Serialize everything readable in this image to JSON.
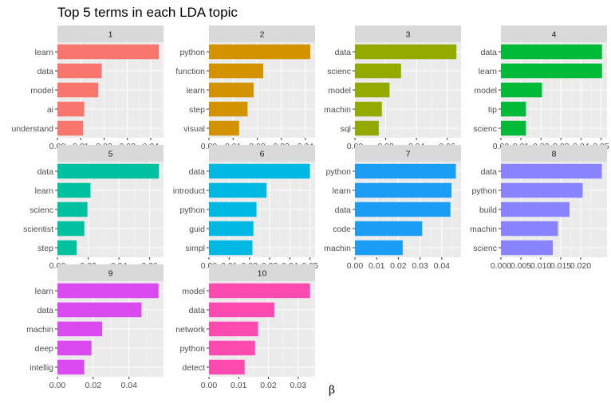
{
  "chart_data": {
    "type": "bar",
    "orientation": "horizontal",
    "title": "Top 5 terms in each LDA topic",
    "xlabel": "β",
    "ylabel": "",
    "grid": true,
    "legend": "none",
    "facets": [
      {
        "label": "1",
        "color": "#F8766D",
        "terms": [
          "learn",
          "data",
          "model",
          "ai",
          "understand"
        ],
        "values": [
          0.0435,
          0.019,
          0.0175,
          0.0115,
          0.011
        ],
        "xlim": [
          0,
          0.0455
        ],
        "ticks": [
          0,
          0.01,
          0.02,
          0.03,
          0.04
        ],
        "tick_labels": [
          "0.00",
          "0.01",
          "0.02",
          "0.03",
          "0.04"
        ]
      },
      {
        "label": "2",
        "color": "#D39200",
        "terms": [
          "python",
          "function",
          "learn",
          "step",
          "visual"
        ],
        "values": [
          0.042,
          0.0225,
          0.0185,
          0.016,
          0.0125
        ],
        "xlim": [
          0,
          0.044
        ],
        "ticks": [
          0,
          0.01,
          0.02,
          0.03,
          0.04
        ],
        "tick_labels": [
          "0.00",
          "0.01",
          "0.02",
          "0.03",
          "0.04"
        ]
      },
      {
        "label": "3",
        "color": "#93AA00",
        "terms": [
          "data",
          "scienc",
          "model",
          "machin",
          "sql"
        ],
        "values": [
          0.066,
          0.03,
          0.0225,
          0.0175,
          0.0155
        ],
        "xlim": [
          0,
          0.069
        ],
        "ticks": [
          0,
          0.02,
          0.04,
          0.06
        ],
        "tick_labels": [
          "0.00",
          "0.02",
          "0.04",
          "0.06"
        ]
      },
      {
        "label": "4",
        "color": "#00BA38",
        "terms": [
          "data",
          "learn",
          "model",
          "tip",
          "scienc"
        ],
        "values": [
          0.0505,
          0.0505,
          0.0205,
          0.0125,
          0.0125
        ],
        "xlim": [
          0,
          0.053
        ],
        "ticks": [
          0,
          0.01,
          0.02,
          0.03,
          0.04,
          0.05
        ],
        "tick_labels": [
          "0.00",
          "0.01",
          "0.02",
          "0.03",
          "0.04",
          "0.05"
        ]
      },
      {
        "label": "5",
        "color": "#00C19F",
        "terms": [
          "data",
          "learn",
          "scienc",
          "scientist",
          "step"
        ],
        "values": [
          0.066,
          0.0215,
          0.0195,
          0.0175,
          0.0125
        ],
        "xlim": [
          0,
          0.069
        ],
        "ticks": [
          0,
          0.02,
          0.04,
          0.06
        ],
        "tick_labels": [
          "0.00",
          "0.02",
          "0.04",
          "0.06"
        ]
      },
      {
        "label": "6",
        "color": "#00B9E3",
        "terms": [
          "data",
          "introduct",
          "python",
          "guid",
          "simpl"
        ],
        "values": [
          0.05,
          0.0285,
          0.0235,
          0.022,
          0.0215
        ],
        "xlim": [
          0,
          0.0525
        ],
        "ticks": [
          0,
          0.01,
          0.02,
          0.03,
          0.04,
          0.05
        ],
        "tick_labels": [
          "0.00",
          "0.01",
          "0.02",
          "0.03",
          "0.04",
          "0.05"
        ]
      },
      {
        "label": "7",
        "color": "#1A9EF5",
        "terms": [
          "python",
          "learn",
          "data",
          "code",
          "machin"
        ],
        "values": [
          0.0465,
          0.0445,
          0.044,
          0.031,
          0.022
        ],
        "xlim": [
          0,
          0.0489
        ],
        "ticks": [
          0,
          0.01,
          0.02,
          0.03,
          0.04
        ],
        "tick_labels": [
          "0.00",
          "0.01",
          "0.02",
          "0.03",
          "0.04"
        ]
      },
      {
        "label": "8",
        "color": "#8A83FF",
        "terms": [
          "data",
          "python",
          "build",
          "machin",
          "scienc"
        ],
        "values": [
          0.0253,
          0.0205,
          0.0172,
          0.0143,
          0.013
        ],
        "xlim": [
          0,
          0.0266
        ],
        "ticks": [
          0,
          0.005,
          0.01,
          0.015,
          0.02
        ],
        "tick_labels": [
          "0.000",
          "0.005",
          "0.010",
          "0.015",
          "0.020"
        ]
      },
      {
        "label": "9",
        "color": "#DB4AF0",
        "terms": [
          "learn",
          "data",
          "machin",
          "deep",
          "intellig"
        ],
        "values": [
          0.0565,
          0.047,
          0.025,
          0.019,
          0.015
        ],
        "xlim": [
          0,
          0.0593
        ],
        "ticks": [
          0,
          0.02,
          0.04
        ],
        "tick_labels": [
          "0.00",
          "0.02",
          "0.04"
        ]
      },
      {
        "label": "10",
        "color": "#FF4AB0",
        "terms": [
          "model",
          "data",
          "network",
          "python",
          "detect"
        ],
        "values": [
          0.034,
          0.022,
          0.0165,
          0.0155,
          0.012
        ],
        "xlim": [
          0,
          0.0357
        ],
        "ticks": [
          0,
          0.01,
          0.02,
          0.03
        ],
        "tick_labels": [
          "0.00",
          "0.01",
          "0.02",
          "0.03"
        ]
      }
    ]
  }
}
